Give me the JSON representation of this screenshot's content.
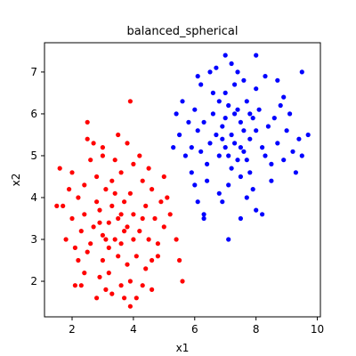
{
  "chart_data": {
    "type": "scatter",
    "title": "balanced_spherical",
    "xlabel": "x1",
    "ylabel": "x2",
    "xlim": [
      1.1,
      10.1
    ],
    "ylim": [
      1.15,
      7.7
    ],
    "xticks": [
      2,
      4,
      6,
      8,
      10
    ],
    "yticks": [
      2,
      3,
      4,
      5,
      6,
      7
    ],
    "grid": false,
    "legend": "none",
    "series": [
      {
        "color": "#ff0000",
        "points": [
          [
            3.5,
            3.5
          ],
          [
            3.2,
            3.4
          ],
          [
            3.8,
            3.3
          ],
          [
            3.3,
            3.8
          ],
          [
            3.0,
            3.1
          ],
          [
            3.6,
            2.9
          ],
          [
            4.0,
            3.6
          ],
          [
            2.9,
            3.7
          ],
          [
            3.4,
            3.0
          ],
          [
            3.7,
            3.9
          ],
          [
            3.1,
            4.2
          ],
          [
            3.9,
            4.1
          ],
          [
            2.7,
            3.3
          ],
          [
            4.2,
            3.2
          ],
          [
            3.5,
            2.6
          ],
          [
            3.3,
            4.4
          ],
          [
            2.6,
            2.9
          ],
          [
            4.4,
            3.8
          ],
          [
            3.0,
            2.5
          ],
          [
            3.8,
            2.4
          ],
          [
            2.4,
            3.6
          ],
          [
            4.5,
            3.0
          ],
          [
            3.6,
            4.6
          ],
          [
            2.8,
            4.5
          ],
          [
            4.3,
            4.4
          ],
          [
            2.5,
            2.7
          ],
          [
            3.2,
            2.2
          ],
          [
            4.1,
            2.6
          ],
          [
            2.3,
            3.2
          ],
          [
            4.7,
            3.5
          ],
          [
            3.4,
            4.9
          ],
          [
            2.9,
            2.1
          ],
          [
            3.9,
            2.0
          ],
          [
            2.2,
            4.0
          ],
          [
            4.6,
            4.2
          ],
          [
            3.0,
            5.0
          ],
          [
            4.0,
            4.8
          ],
          [
            2.1,
            2.8
          ],
          [
            4.8,
            2.9
          ],
          [
            3.6,
            1.9
          ],
          [
            2.6,
            4.9
          ],
          [
            4.4,
            2.3
          ],
          [
            2.0,
            3.5
          ],
          [
            4.9,
            3.9
          ],
          [
            3.3,
            1.7
          ],
          [
            2.4,
            2.2
          ],
          [
            4.2,
            5.0
          ],
          [
            2.7,
            5.3
          ],
          [
            4.6,
            2.5
          ],
          [
            1.9,
            4.2
          ],
          [
            5.0,
            3.3
          ],
          [
            3.8,
            5.3
          ],
          [
            2.2,
            2.5
          ],
          [
            3.1,
            1.8
          ],
          [
            4.1,
            1.6
          ],
          [
            2.5,
            5.4
          ],
          [
            1.8,
            3.0
          ],
          [
            5.1,
            4.0
          ],
          [
            3.5,
            5.5
          ],
          [
            4.5,
            4.7
          ],
          [
            2.0,
            4.6
          ],
          [
            4.8,
            2.6
          ],
          [
            2.3,
            1.9
          ],
          [
            3.7,
            1.6
          ],
          [
            5.2,
            3.6
          ],
          [
            1.7,
            3.8
          ],
          [
            4.3,
            1.9
          ],
          [
            2.8,
            1.6
          ],
          [
            5.0,
            4.5
          ],
          [
            1.6,
            4.7
          ],
          [
            1.5,
            3.8
          ],
          [
            2.1,
            1.9
          ],
          [
            3.9,
            1.4
          ],
          [
            5.4,
            3.0
          ],
          [
            5.5,
            2.5
          ],
          [
            5.6,
            2.0
          ],
          [
            3.9,
            6.3
          ],
          [
            2.5,
            5.8
          ],
          [
            3.0,
            5.2
          ],
          [
            4.6,
            1.8
          ],
          [
            2.4,
            4.3
          ],
          [
            3.6,
            3.6
          ],
          [
            3.1,
            3.0
          ],
          [
            4.0,
            3.0
          ],
          [
            2.8,
            3.9
          ],
          [
            3.4,
            4.1
          ],
          [
            3.7,
            3.2
          ],
          [
            3.2,
            2.8
          ],
          [
            4.3,
            3.5
          ],
          [
            2.9,
            3.4
          ]
        ]
      },
      {
        "color": "#0000ff",
        "points": [
          [
            7.2,
            5.5
          ],
          [
            7.5,
            5.8
          ],
          [
            7.0,
            5.2
          ],
          [
            7.8,
            5.4
          ],
          [
            7.3,
            6.0
          ],
          [
            6.9,
            5.7
          ],
          [
            7.6,
            5.1
          ],
          [
            7.1,
            6.2
          ],
          [
            7.9,
            5.9
          ],
          [
            6.8,
            5.0
          ],
          [
            7.4,
            4.9
          ],
          [
            8.0,
            5.6
          ],
          [
            6.7,
            5.5
          ],
          [
            7.7,
            6.3
          ],
          [
            7.2,
            4.7
          ],
          [
            8.2,
            5.2
          ],
          [
            6.6,
            6.0
          ],
          [
            7.5,
            4.5
          ],
          [
            8.1,
            6.1
          ],
          [
            6.5,
            5.3
          ],
          [
            7.0,
            6.5
          ],
          [
            8.3,
            5.0
          ],
          [
            6.4,
            4.8
          ],
          [
            7.8,
            4.6
          ],
          [
            7.3,
            6.7
          ],
          [
            8.4,
            5.7
          ],
          [
            6.3,
            5.8
          ],
          [
            7.6,
            6.8
          ],
          [
            8.5,
            4.8
          ],
          [
            6.2,
            5.1
          ],
          [
            7.1,
            4.3
          ],
          [
            8.0,
            6.6
          ],
          [
            6.6,
            6.5
          ],
          [
            8.6,
            5.9
          ],
          [
            6.1,
            5.6
          ],
          [
            7.4,
            7.0
          ],
          [
            8.7,
            5.3
          ],
          [
            6.4,
            4.4
          ],
          [
            7.9,
            4.2
          ],
          [
            6.0,
            6.1
          ],
          [
            8.8,
            6.2
          ],
          [
            6.8,
            4.1
          ],
          [
            7.2,
            7.2
          ],
          [
            8.9,
            4.9
          ],
          [
            5.9,
            5.2
          ],
          [
            8.3,
            6.9
          ],
          [
            6.2,
            6.7
          ],
          [
            7.7,
            4.0
          ],
          [
            9.0,
            5.6
          ],
          [
            5.8,
            5.8
          ],
          [
            6.9,
            3.9
          ],
          [
            8.5,
            4.4
          ],
          [
            9.1,
            6.0
          ],
          [
            5.7,
            5.0
          ],
          [
            6.5,
            7.0
          ],
          [
            8.0,
            3.7
          ],
          [
            9.2,
            5.1
          ],
          [
            5.6,
            6.3
          ],
          [
            7.0,
            7.4
          ],
          [
            8.7,
            6.8
          ],
          [
            6.3,
            3.6
          ],
          [
            9.3,
            4.6
          ],
          [
            6.0,
            4.3
          ],
          [
            8.2,
            3.6
          ],
          [
            9.4,
            5.4
          ],
          [
            5.5,
            5.5
          ],
          [
            6.7,
            7.1
          ],
          [
            8.9,
            6.4
          ],
          [
            7.5,
            3.5
          ],
          [
            9.5,
            5.0
          ],
          [
            5.3,
            5.2
          ],
          [
            6.1,
            3.9
          ],
          [
            9.7,
            5.5
          ],
          [
            6.3,
            3.5
          ],
          [
            7.1,
            3.0
          ],
          [
            8.0,
            7.4
          ],
          [
            9.5,
            7.0
          ],
          [
            5.4,
            6.0
          ],
          [
            6.1,
            6.9
          ],
          [
            5.9,
            4.6
          ],
          [
            7.3,
            5.3
          ],
          [
            7.6,
            5.6
          ],
          [
            6.9,
            5.4
          ],
          [
            7.4,
            6.1
          ],
          [
            7.1,
            5.0
          ],
          [
            7.8,
            6.0
          ],
          [
            7.0,
            5.9
          ],
          [
            7.5,
            5.2
          ],
          [
            6.8,
            6.3
          ],
          [
            7.7,
            4.9
          ]
        ]
      }
    ]
  }
}
